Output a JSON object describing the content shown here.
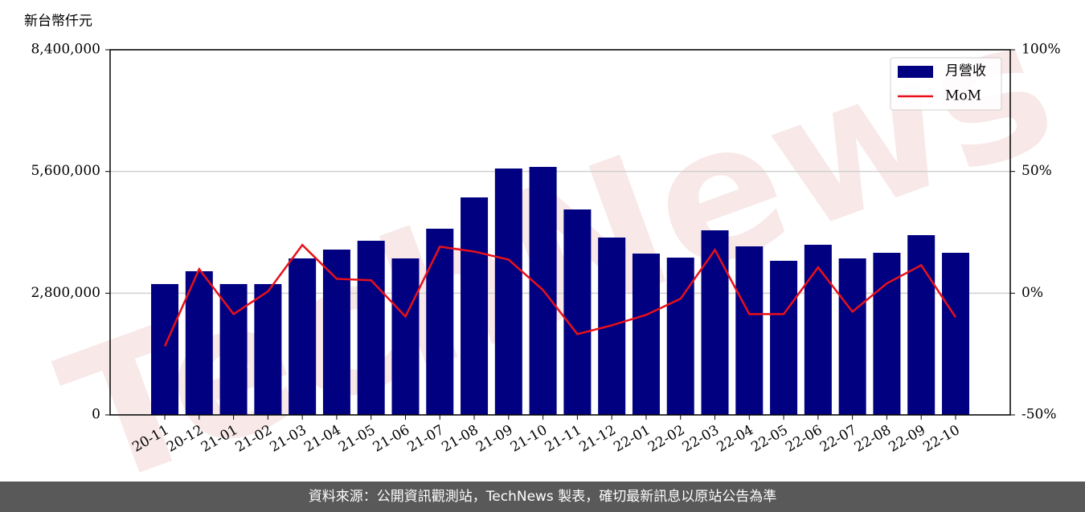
{
  "chart_data": {
    "type": "bar_line",
    "y_label": "新台幣仟元",
    "watermark": "TechNews",
    "categories": [
      "20-11",
      "20-12",
      "21-01",
      "21-02",
      "21-03",
      "21-04",
      "21-05",
      "21-06",
      "21-07",
      "21-08",
      "21-09",
      "21-10",
      "21-11",
      "21-12",
      "22-01",
      "22-02",
      "22-03",
      "22-04",
      "22-05",
      "22-06",
      "22-07",
      "22-08",
      "22-09",
      "22-10"
    ],
    "series": [
      {
        "name": "月營收",
        "type": "bar",
        "color": "#000080",
        "values": [
          3010000,
          3305000,
          3010000,
          3010000,
          3600000,
          3803000,
          4006000,
          3600000,
          4283000,
          5003000,
          5668000,
          5705000,
          4726000,
          4080000,
          3711000,
          3618000,
          4246000,
          3877000,
          3545000,
          3914000,
          3600000,
          3729000,
          4135000,
          3729000
        ]
      },
      {
        "name": "MoM",
        "type": "line",
        "axis": "y2",
        "color": "#e8101a",
        "values": [
          -21.8,
          9.9,
          -8.6,
          0.7,
          19.8,
          5.9,
          5.3,
          -9.6,
          19.1,
          17.1,
          13.8,
          1.3,
          -16.8,
          -13.2,
          -8.9,
          -2.3,
          17.8,
          -8.6,
          -8.6,
          10.6,
          -7.6,
          4.0,
          11.5,
          -9.9
        ]
      }
    ],
    "ylim": [
      0,
      8400000
    ],
    "yticks": [
      0,
      {
        "value": 2800000,
        "label": "2,800,000"
      },
      {
        "value": 5600000,
        "label": "5,600,000"
      },
      {
        "value": 8400000,
        "label": "8,400,000"
      }
    ],
    "y2lim": [
      -50,
      100
    ],
    "y2ticks": [
      {
        "value": -50,
        "label": "-50%"
      },
      {
        "value": 0,
        "label": "0%"
      },
      {
        "value": 50,
        "label": "50%"
      },
      {
        "value": 100,
        "label": "100%"
      }
    ],
    "grid": true,
    "legend": "upper right"
  },
  "footer": "資料來源：公開資訊觀測站，TechNews 製表，確切最新訊息以原站公告為準"
}
